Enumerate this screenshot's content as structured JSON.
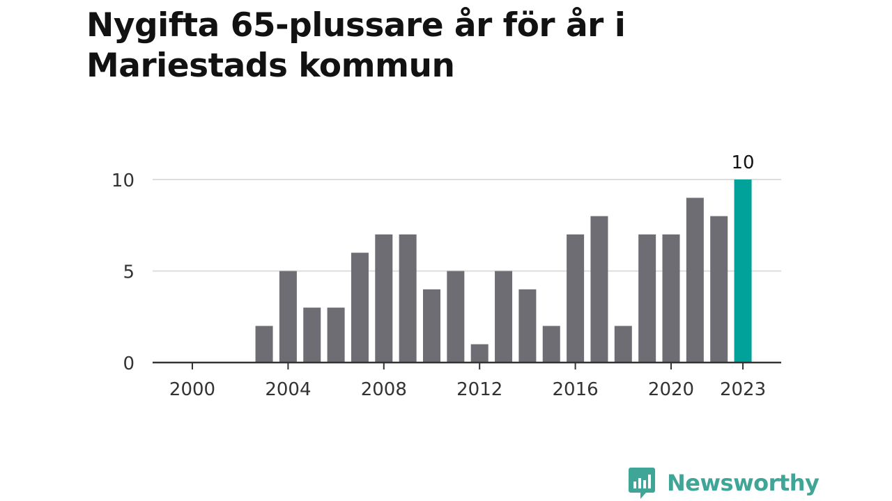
{
  "title": "Nygifta 65-plussare år för år i Mariestads kommun",
  "brand": {
    "name": "Newsworthy",
    "icon": "newsworthy-logo-icon",
    "color": "#3fa596"
  },
  "colors": {
    "bar": "#6e6d73",
    "highlight": "#00a29a",
    "grid": "#dddddd",
    "axis": "#333333"
  },
  "chart_data": {
    "type": "bar",
    "categories": [
      "2000",
      "2001",
      "2002",
      "2003",
      "2004",
      "2005",
      "2006",
      "2007",
      "2008",
      "2009",
      "2010",
      "2011",
      "2012",
      "2013",
      "2014",
      "2015",
      "2016",
      "2017",
      "2018",
      "2019",
      "2020",
      "2021",
      "2022",
      "2023"
    ],
    "values": [
      0,
      0,
      0,
      2,
      5,
      3,
      3,
      6,
      7,
      7,
      4,
      5,
      1,
      5,
      4,
      2,
      7,
      8,
      2,
      7,
      7,
      9,
      8,
      10
    ],
    "highlight_category": "2023",
    "highlight_label": "10",
    "x_tick_labels": [
      "2000",
      "2004",
      "2008",
      "2012",
      "2016",
      "2020",
      "2023"
    ],
    "y_ticks": [
      0,
      5,
      10
    ],
    "ylim": [
      0,
      10
    ],
    "grid": true,
    "title": "Nygifta 65-plussare år för år i Mariestads kommun",
    "xlabel": "",
    "ylabel": ""
  }
}
